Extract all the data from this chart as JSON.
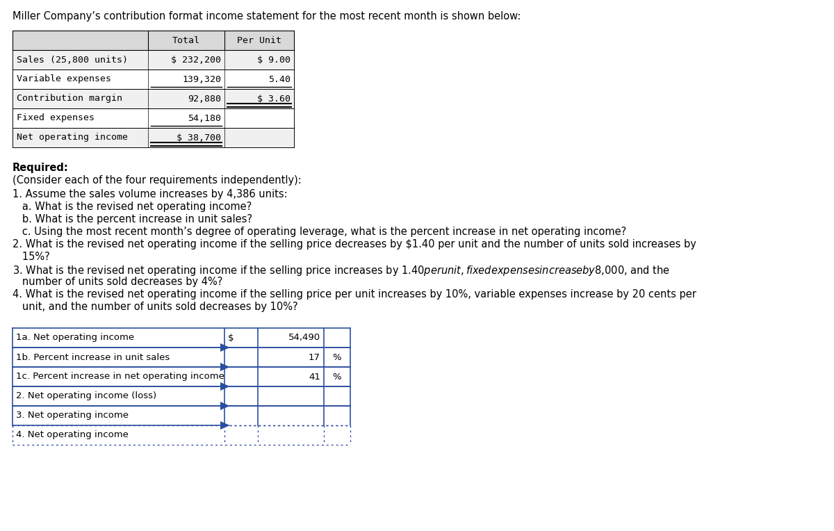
{
  "title": "Miller Company’s contribution format income statement for the most recent month is shown below:",
  "bg_color": "#ffffff",
  "font_color": "#000000",
  "income_table": {
    "header_row": [
      "",
      "Total",
      "Per Unit"
    ],
    "rows": [
      [
        "Sales (25,800 units)",
        "$ 232,200",
        "$ 9.00"
      ],
      [
        "Variable expenses",
        "139,320",
        "5.40"
      ],
      [
        "Contribution margin",
        "92,880",
        "$ 3.60"
      ],
      [
        "Fixed expenses",
        "54,180",
        ""
      ],
      [
        "Net operating income",
        "$ 38,700",
        ""
      ]
    ],
    "header_bg": "#d9d9d9",
    "border_color": "#000000"
  },
  "required_label": "Required:",
  "consider_label": "(Consider each of the four requirements independently):",
  "q_lines": [
    [
      "1. Assume the sales volume increases by 4,386 units:",
      0.3
    ],
    [
      "   a. What is the revised net operating income?",
      0.52
    ],
    [
      "   b. What is the percent increase in unit sales?",
      0.52
    ],
    [
      "   c. Using the most recent month’s degree of operating leverage, what is the percent increase in net operating income?",
      0.52
    ],
    [
      "2. What is the revised net operating income if the selling price decreases by $1.40 per unit and the number of units sold increases by",
      0.3
    ],
    [
      "   15%?",
      0.52
    ],
    [
      "3. What is the revised net operating income if the selling price increases by $1.40 per unit, fixed expenses increase by $8,000, and the",
      0.3
    ],
    [
      "   number of units sold decreases by 4%?",
      0.52
    ],
    [
      "4. What is the revised net operating income if the selling price per unit increases by 10%, variable expenses increase by 20 cents per",
      0.3
    ],
    [
      "   unit, and the number of units sold decreases by 10%?",
      0.52
    ]
  ],
  "answer_table": {
    "rows": [
      [
        "1a. Net operating income",
        "$",
        "54,490",
        ""
      ],
      [
        "1b. Percent increase in unit sales",
        "",
        "17",
        "%"
      ],
      [
        "1c. Percent increase in net operating income",
        "",
        "41",
        "%"
      ],
      [
        "2. Net operating income (loss)",
        "",
        "",
        ""
      ],
      [
        "3. Net operating income",
        "",
        "",
        ""
      ],
      [
        "4. Net operating income",
        "",
        "",
        ""
      ]
    ],
    "border_color": "#2b4fa0",
    "dotted_rows": [
      5
    ],
    "semi_dotted_rows": [
      4
    ]
  }
}
